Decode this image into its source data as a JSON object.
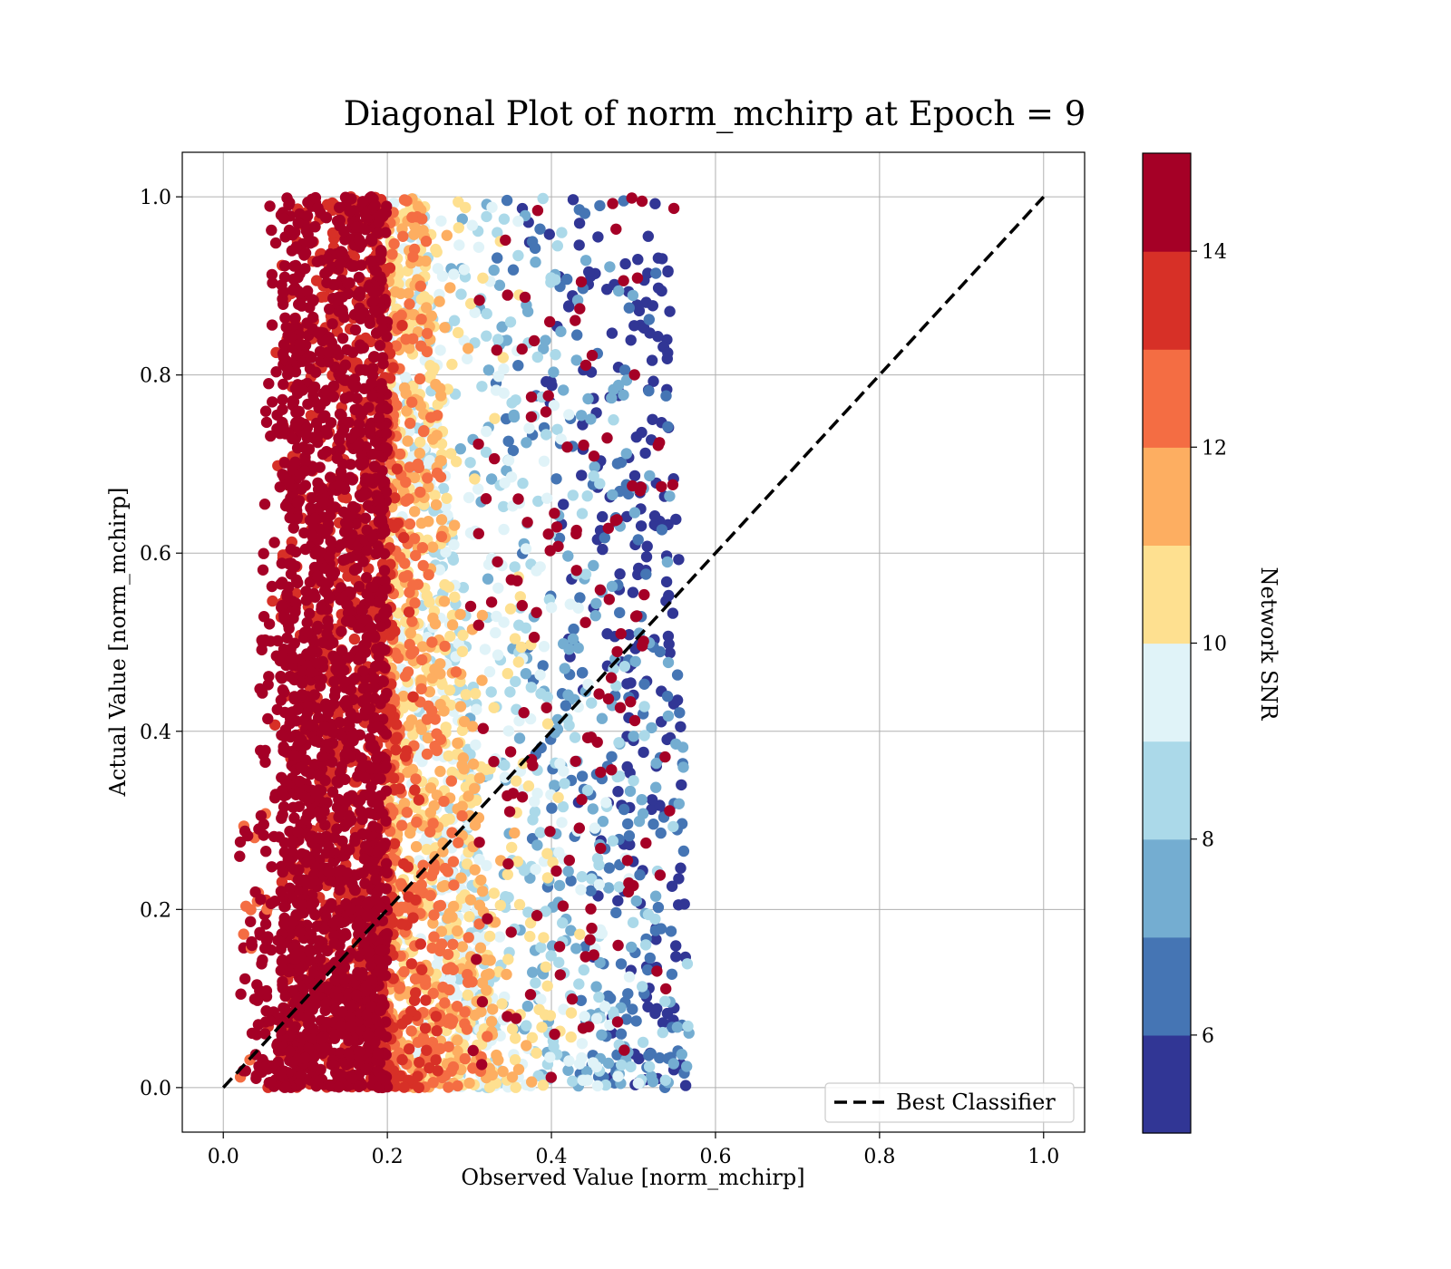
{
  "chart_data": {
    "type": "scatter",
    "title": "Diagonal Plot of norm_mchirp at Epoch = 9",
    "xlabel": "Observed Value [norm_mchirp]",
    "ylabel": "Actual Value [norm_mchirp]",
    "xlim": [
      -0.05,
      1.05
    ],
    "ylim": [
      -0.05,
      1.05
    ],
    "x_ticks": [
      "0.0",
      "0.2",
      "0.4",
      "0.6",
      "0.8",
      "1.0"
    ],
    "y_ticks": [
      "0.0",
      "0.2",
      "0.4",
      "0.6",
      "0.8",
      "1.0"
    ],
    "x_tick_values": [
      0.0,
      0.2,
      0.4,
      0.6,
      0.8,
      1.0
    ],
    "y_tick_values": [
      0.0,
      0.2,
      0.4,
      0.6,
      0.8,
      1.0
    ],
    "grid": true,
    "reference_line": {
      "name": "Best Classifier",
      "x": [
        0.0,
        1.0
      ],
      "y": [
        0.0,
        1.0
      ],
      "style": "dashed",
      "color": "#000000"
    },
    "legend": {
      "position": "bottom-right",
      "entries": [
        "Best Classifier"
      ]
    },
    "colorbar": {
      "label": "Network SNR",
      "range": [
        5,
        15
      ],
      "ticks": [
        "6",
        "8",
        "10",
        "12",
        "14"
      ],
      "tick_values": [
        6,
        8,
        10,
        12,
        14
      ],
      "bins": [
        5,
        6,
        7,
        8,
        9,
        10,
        11,
        12,
        13,
        14,
        15
      ],
      "colors": [
        "#313695",
        "#4575b4",
        "#74add1",
        "#abd9e9",
        "#e0f3f8",
        "#fee090",
        "#fdae61",
        "#f46d43",
        "#d73027",
        "#a50026"
      ]
    },
    "scatter_summary": {
      "x_range": [
        0.02,
        0.57
      ],
      "y_range": [
        0.0,
        1.0
      ],
      "color_trend": "SNR decreases as observed value increases; points with observed value < 0.2 are mostly SNR ≥ 14, points near 0.5 are mostly SNR 5–9"
    }
  }
}
